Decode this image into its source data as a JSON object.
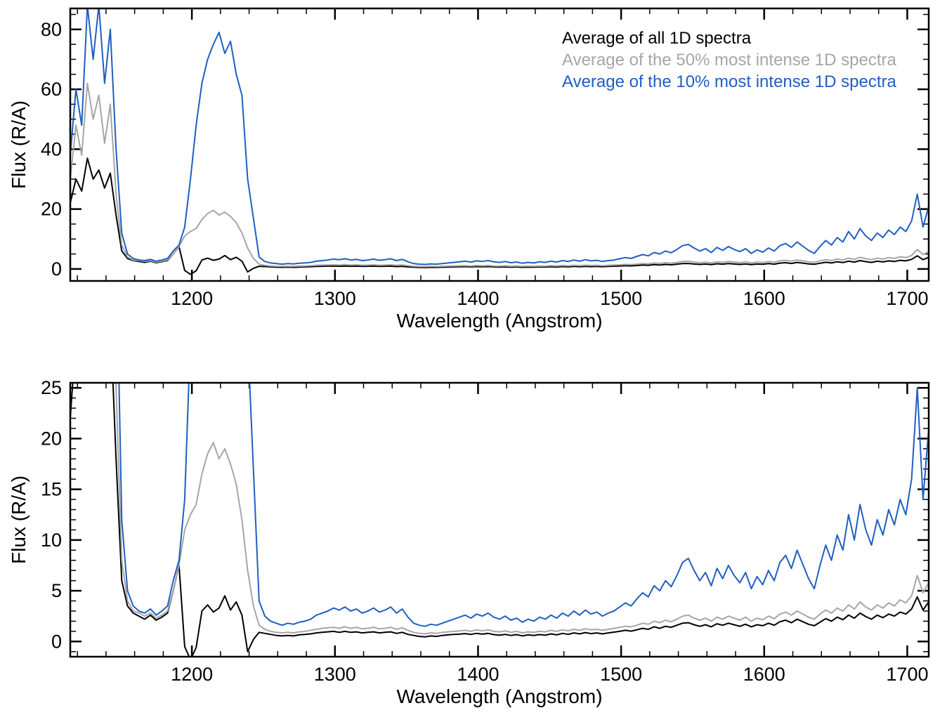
{
  "figure": {
    "background": "#ffffff",
    "n_panels": 2
  },
  "chart_data": {
    "type": "line",
    "title": "",
    "xlabel": "Wavelength (Angstrom)",
    "ylabel": "Flux (R/A)",
    "xlim": [
      1115,
      1715
    ],
    "xticks": [
      1200,
      1300,
      1400,
      1500,
      1600,
      1700
    ],
    "x_minor_step": 20,
    "grid": false,
    "x_start": 1115,
    "x_step": 4,
    "n_points": 151,
    "series": [
      {
        "key": "all-1d",
        "name": "Average of all 1D spectra",
        "color": "#000000",
        "values": [
          22,
          30,
          26,
          37,
          30,
          33,
          27,
          32,
          18,
          6,
          3.5,
          2.8,
          2.5,
          2.2,
          2.6,
          2.1,
          2.4,
          2.8,
          5,
          7.5,
          -0.5,
          -1.8,
          -0.6,
          3,
          3.6,
          2.9,
          3.3,
          4.5,
          3.1,
          3.9,
          2.6,
          -1,
          0.2,
          0.9,
          0.8,
          0.7,
          0.6,
          0.55,
          0.6,
          0.55,
          0.65,
          0.7,
          0.75,
          0.85,
          0.9,
          0.95,
          1,
          0.9,
          1,
          0.9,
          0.95,
          0.85,
          0.9,
          0.95,
          0.85,
          0.9,
          0.95,
          0.8,
          0.9,
          0.7,
          0.6,
          0.5,
          0.45,
          0.55,
          0.5,
          0.6,
          0.65,
          0.7,
          0.72,
          0.78,
          0.7,
          0.8,
          0.72,
          0.8,
          0.68,
          0.62,
          0.7,
          0.6,
          0.68,
          0.55,
          0.65,
          0.6,
          0.68,
          0.62,
          0.75,
          0.65,
          0.8,
          0.7,
          0.85,
          0.75,
          0.88,
          0.78,
          0.85,
          0.75,
          0.85,
          0.92,
          1,
          1.1,
          1.02,
          1.15,
          1.3,
          1.2,
          1.45,
          1.3,
          1.5,
          1.4,
          1.6,
          1.8,
          1.85,
          1.65,
          1.5,
          1.65,
          1.45,
          1.75,
          1.6,
          1.8,
          1.65,
          1.5,
          1.7,
          1.45,
          1.65,
          1.55,
          1.8,
          1.6,
          1.95,
          2.1,
          1.85,
          2.2,
          1.95,
          1.7,
          1.55,
          1.9,
          2.25,
          2,
          2.4,
          2.15,
          2.6,
          2.3,
          2.8,
          2.45,
          2.2,
          2.6,
          2.35,
          2.7,
          2.5,
          2.9,
          2.7,
          3.2,
          4.4,
          3.1,
          3.9
        ]
      },
      {
        "key": "top-50",
        "name": "Average of the 50% most intense 1D spectra",
        "color": "#a6a6a6",
        "values": [
          30,
          48,
          38,
          62,
          50,
          58,
          42,
          55,
          25,
          8,
          4,
          3,
          2.8,
          2.5,
          2.8,
          2.3,
          2.6,
          3,
          5,
          7.5,
          11,
          12.5,
          13.5,
          16.5,
          18.5,
          19.6,
          18,
          19,
          17.5,
          15.5,
          12,
          7,
          3.5,
          1.6,
          1.2,
          1,
          0.9,
          0.85,
          0.9,
          0.85,
          0.95,
          1,
          1.1,
          1.2,
          1.3,
          1.35,
          1.4,
          1.3,
          1.45,
          1.3,
          1.4,
          1.25,
          1.3,
          1.4,
          1.25,
          1.3,
          1.4,
          1.2,
          1.35,
          1.1,
          0.9,
          0.8,
          0.75,
          0.85,
          0.8,
          0.9,
          0.95,
          1,
          1.05,
          1.1,
          1,
          1.15,
          1.05,
          1.15,
          1,
          0.95,
          1.05,
          0.9,
          1,
          0.85,
          0.95,
          0.9,
          1,
          0.95,
          1.1,
          1,
          1.15,
          1.05,
          1.2,
          1.1,
          1.25,
          1.15,
          1.2,
          1.1,
          1.2,
          1.3,
          1.4,
          1.5,
          1.45,
          1.6,
          1.8,
          1.7,
          2,
          1.85,
          2.1,
          1.95,
          2.2,
          2.5,
          2.6,
          2.3,
          2.1,
          2.3,
          2,
          2.4,
          2.2,
          2.5,
          2.3,
          2.1,
          2.4,
          2,
          2.3,
          2.15,
          2.5,
          2.25,
          2.7,
          2.9,
          2.6,
          3,
          2.7,
          2.4,
          2.2,
          2.7,
          3.1,
          2.8,
          3.3,
          3,
          3.6,
          3.2,
          3.9,
          3.4,
          3.1,
          3.6,
          3.3,
          3.8,
          3.5,
          4.1,
          3.8,
          4.5,
          6.5,
          4.8,
          5.8
        ]
      },
      {
        "key": "top-10",
        "name": "Average of the 10% most intense 1D spectra",
        "color": "#1f5fc1",
        "values": [
          38,
          60,
          48,
          88,
          70,
          88,
          62,
          80,
          40,
          12,
          5,
          3.5,
          3,
          2.8,
          3.2,
          2.6,
          3,
          3.5,
          6,
          8,
          14,
          30,
          48,
          62,
          70,
          75,
          79,
          72,
          76,
          65,
          58,
          30,
          17,
          4,
          2.5,
          2,
          1.8,
          1.6,
          1.8,
          1.7,
          1.9,
          2,
          2.2,
          2.6,
          2.8,
          3,
          3.3,
          3.1,
          3.4,
          3,
          3.2,
          2.8,
          3,
          3.3,
          2.9,
          3.1,
          3.4,
          2.8,
          3.2,
          2.4,
          1.8,
          1.6,
          1.5,
          1.7,
          1.6,
          1.8,
          2,
          2.2,
          2.4,
          2.6,
          2.3,
          2.7,
          2.5,
          2.8,
          2.4,
          2.2,
          2.5,
          2.1,
          2.3,
          1.9,
          2.2,
          2,
          2.4,
          2.2,
          2.6,
          2.3,
          2.8,
          2.5,
          3,
          2.6,
          3.1,
          2.7,
          2.9,
          2.5,
          2.8,
          3,
          3.4,
          3.8,
          3.5,
          4.2,
          4.8,
          4.4,
          5.5,
          5,
          6,
          5.4,
          6.5,
          7.8,
          8.2,
          7,
          6,
          6.8,
          5.5,
          7.2,
          6.2,
          7.5,
          6.5,
          5.8,
          6.8,
          5.2,
          6.4,
          5.6,
          7,
          6,
          7.8,
          8.5,
          7.2,
          9,
          7.6,
          6.2,
          5.2,
          7.5,
          9.5,
          8,
          10.5,
          9,
          12.5,
          10,
          13.5,
          11,
          9.5,
          12,
          10.5,
          13,
          11.5,
          14,
          12.5,
          16,
          25,
          14,
          21
        ]
      }
    ],
    "panels": [
      {
        "name": "full-range",
        "ylim": [
          -4,
          87
        ],
        "yticks": [
          0,
          20,
          40,
          60,
          80
        ],
        "y_minor_step": 5,
        "legend": true,
        "legend_position": "top-right"
      },
      {
        "name": "zoomed",
        "ylim": [
          -1.5,
          25.5
        ],
        "yticks": [
          0,
          5,
          10,
          15,
          20,
          25
        ],
        "y_minor_step": 1,
        "legend": false,
        "legend_position": "none"
      }
    ]
  }
}
